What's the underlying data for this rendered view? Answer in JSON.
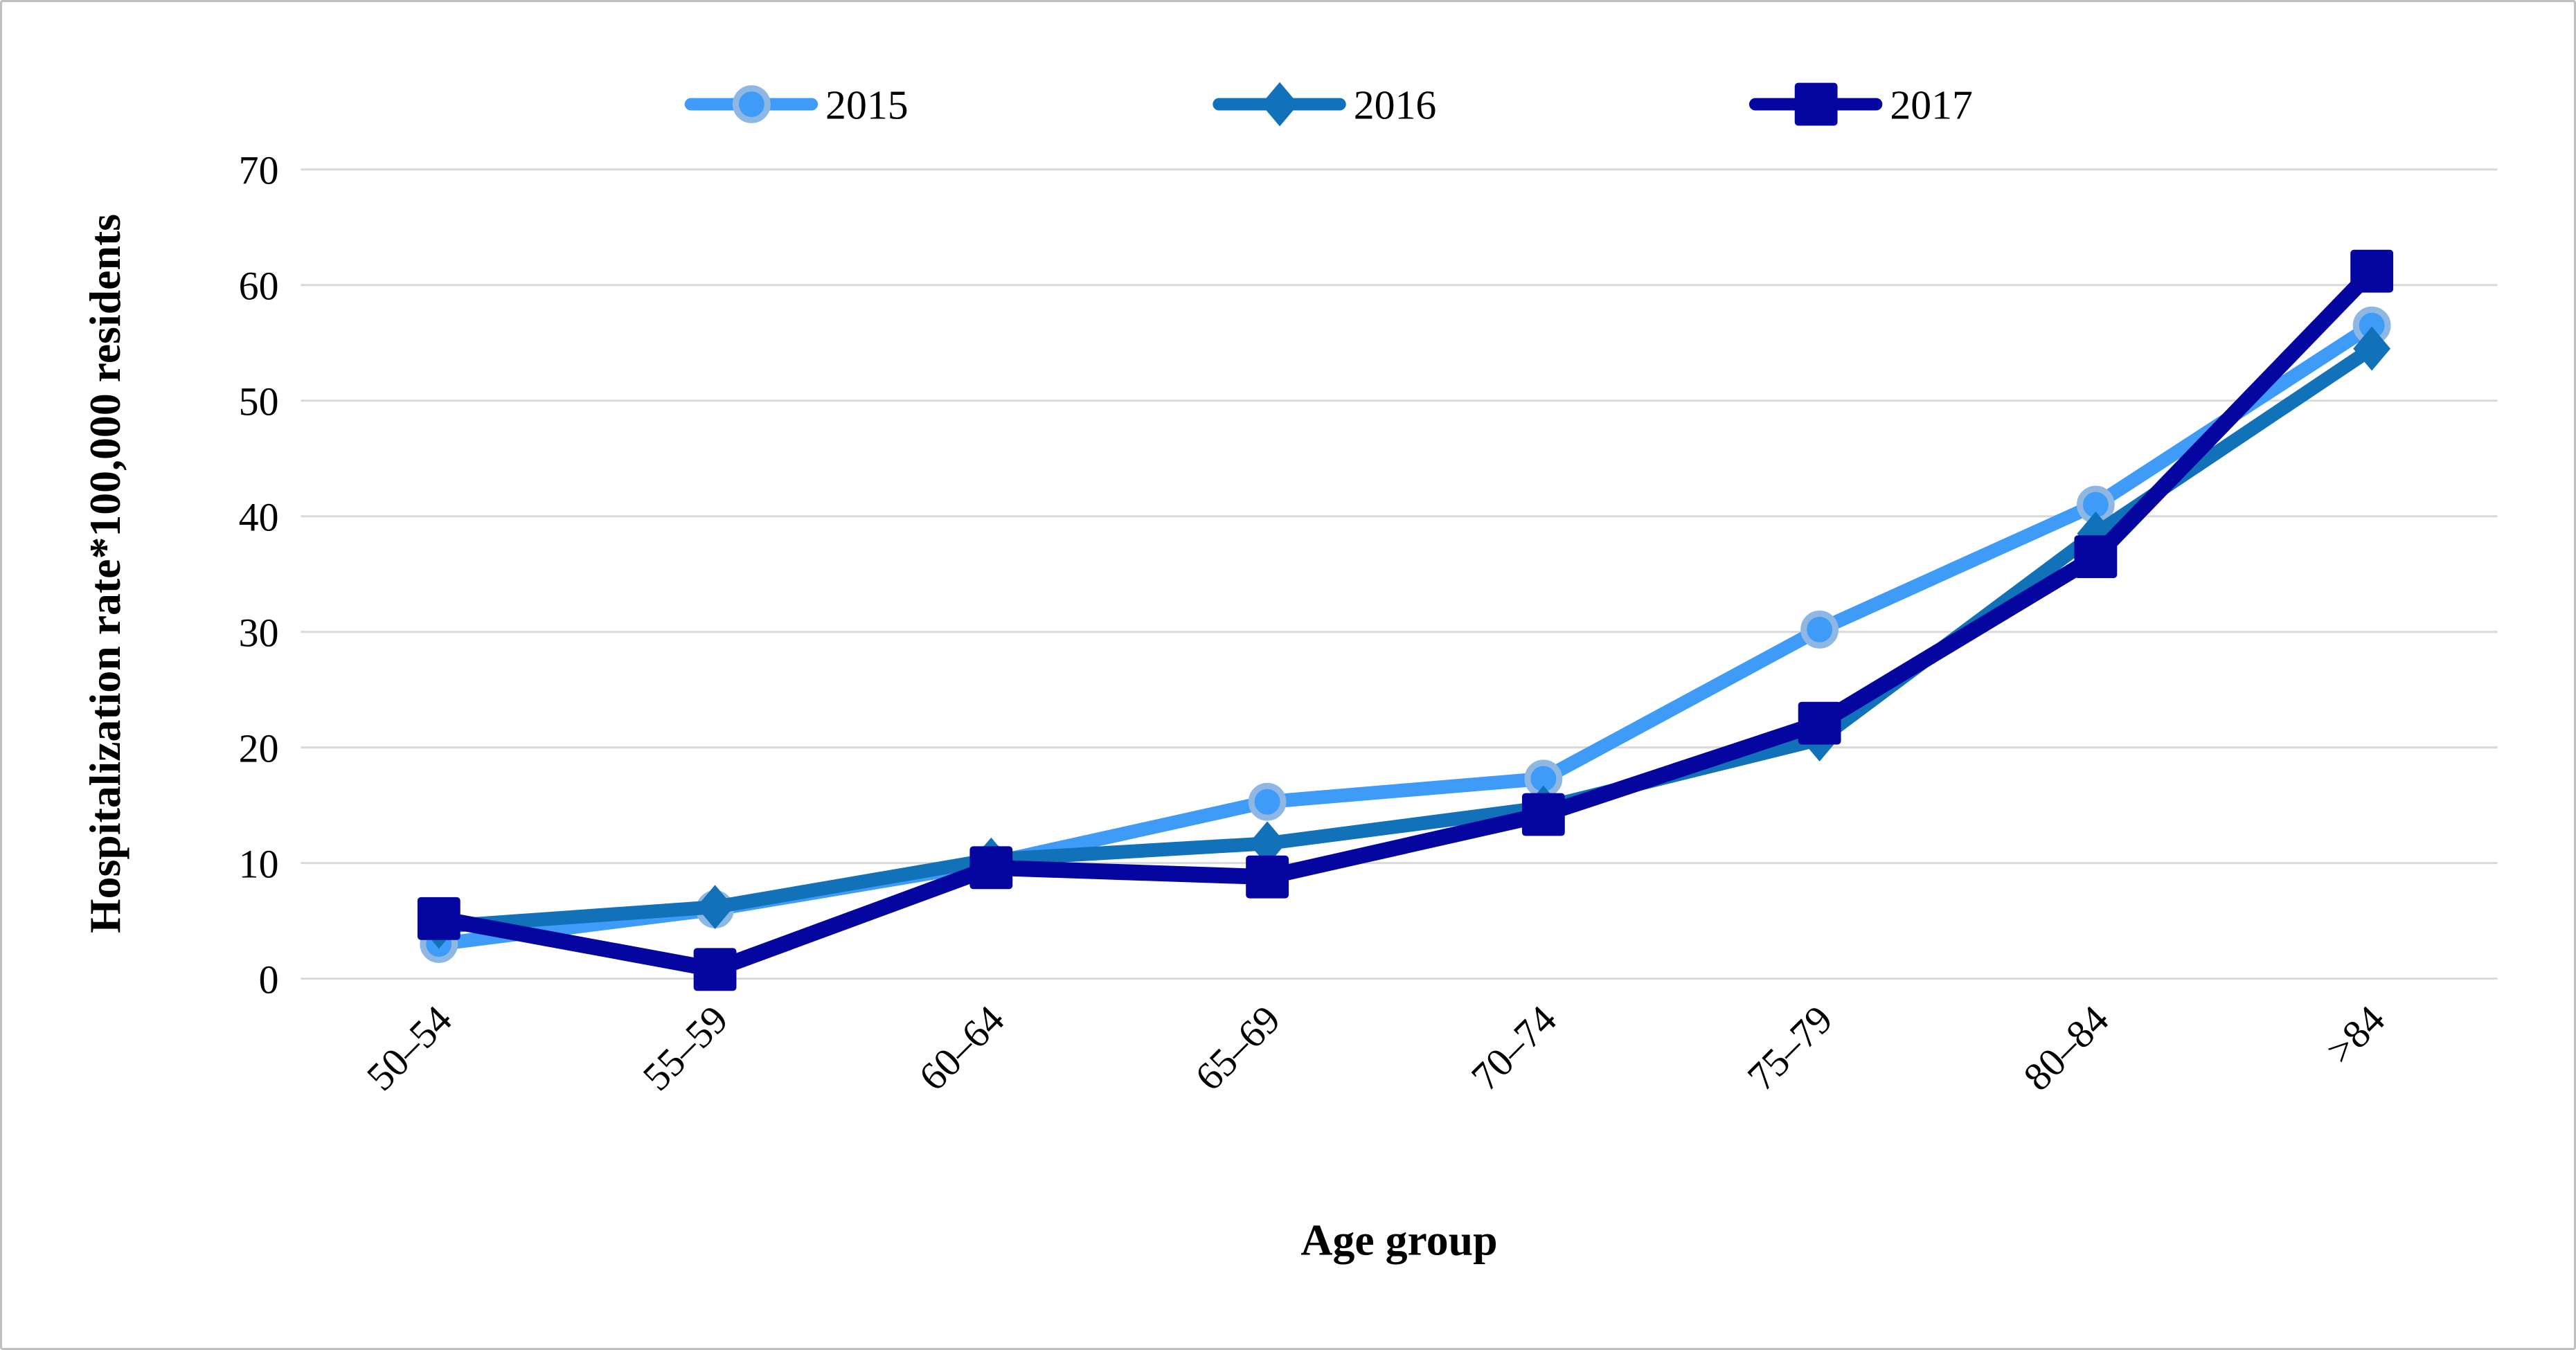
{
  "figure": {
    "background": "#FFFFFF",
    "border_color": "#BFBFBF"
  },
  "chart_data": {
    "type": "line",
    "title": "",
    "xlabel": "Age group",
    "ylabel": "Hospitalization rate*100,000 residents",
    "categories": [
      "50–54",
      "55–59",
      "60–64",
      "65–69",
      "70–74",
      "75–79",
      "80–84",
      ">84"
    ],
    "series": [
      {
        "name": "2015",
        "color": "#3E9BF7",
        "marker": "circle",
        "marker_halo": "#8FB7E4",
        "values": [
          3,
          6,
          10,
          15.3,
          17.3,
          30.2,
          41,
          56.5
        ]
      },
      {
        "name": "2016",
        "color": "#1272B9",
        "marker": "diamond",
        "values": [
          4.5,
          6.2,
          10.3,
          11.7,
          14.8,
          20.7,
          38.5,
          54.5
        ]
      },
      {
        "name": "2017",
        "color": "#0505A0",
        "marker": "square",
        "values": [
          5.2,
          0.8,
          9.6,
          8.8,
          14.2,
          22.1,
          36.5,
          61.2
        ]
      }
    ],
    "ylim": [
      0,
      70
    ],
    "yticks": [
      0,
      10,
      20,
      30,
      40,
      50,
      60,
      70
    ],
    "grid": "horizontal",
    "gridline_color": "#D9D9D9",
    "legend_position": "top",
    "legend_labels": [
      "2015",
      "2016",
      "2017"
    ]
  }
}
